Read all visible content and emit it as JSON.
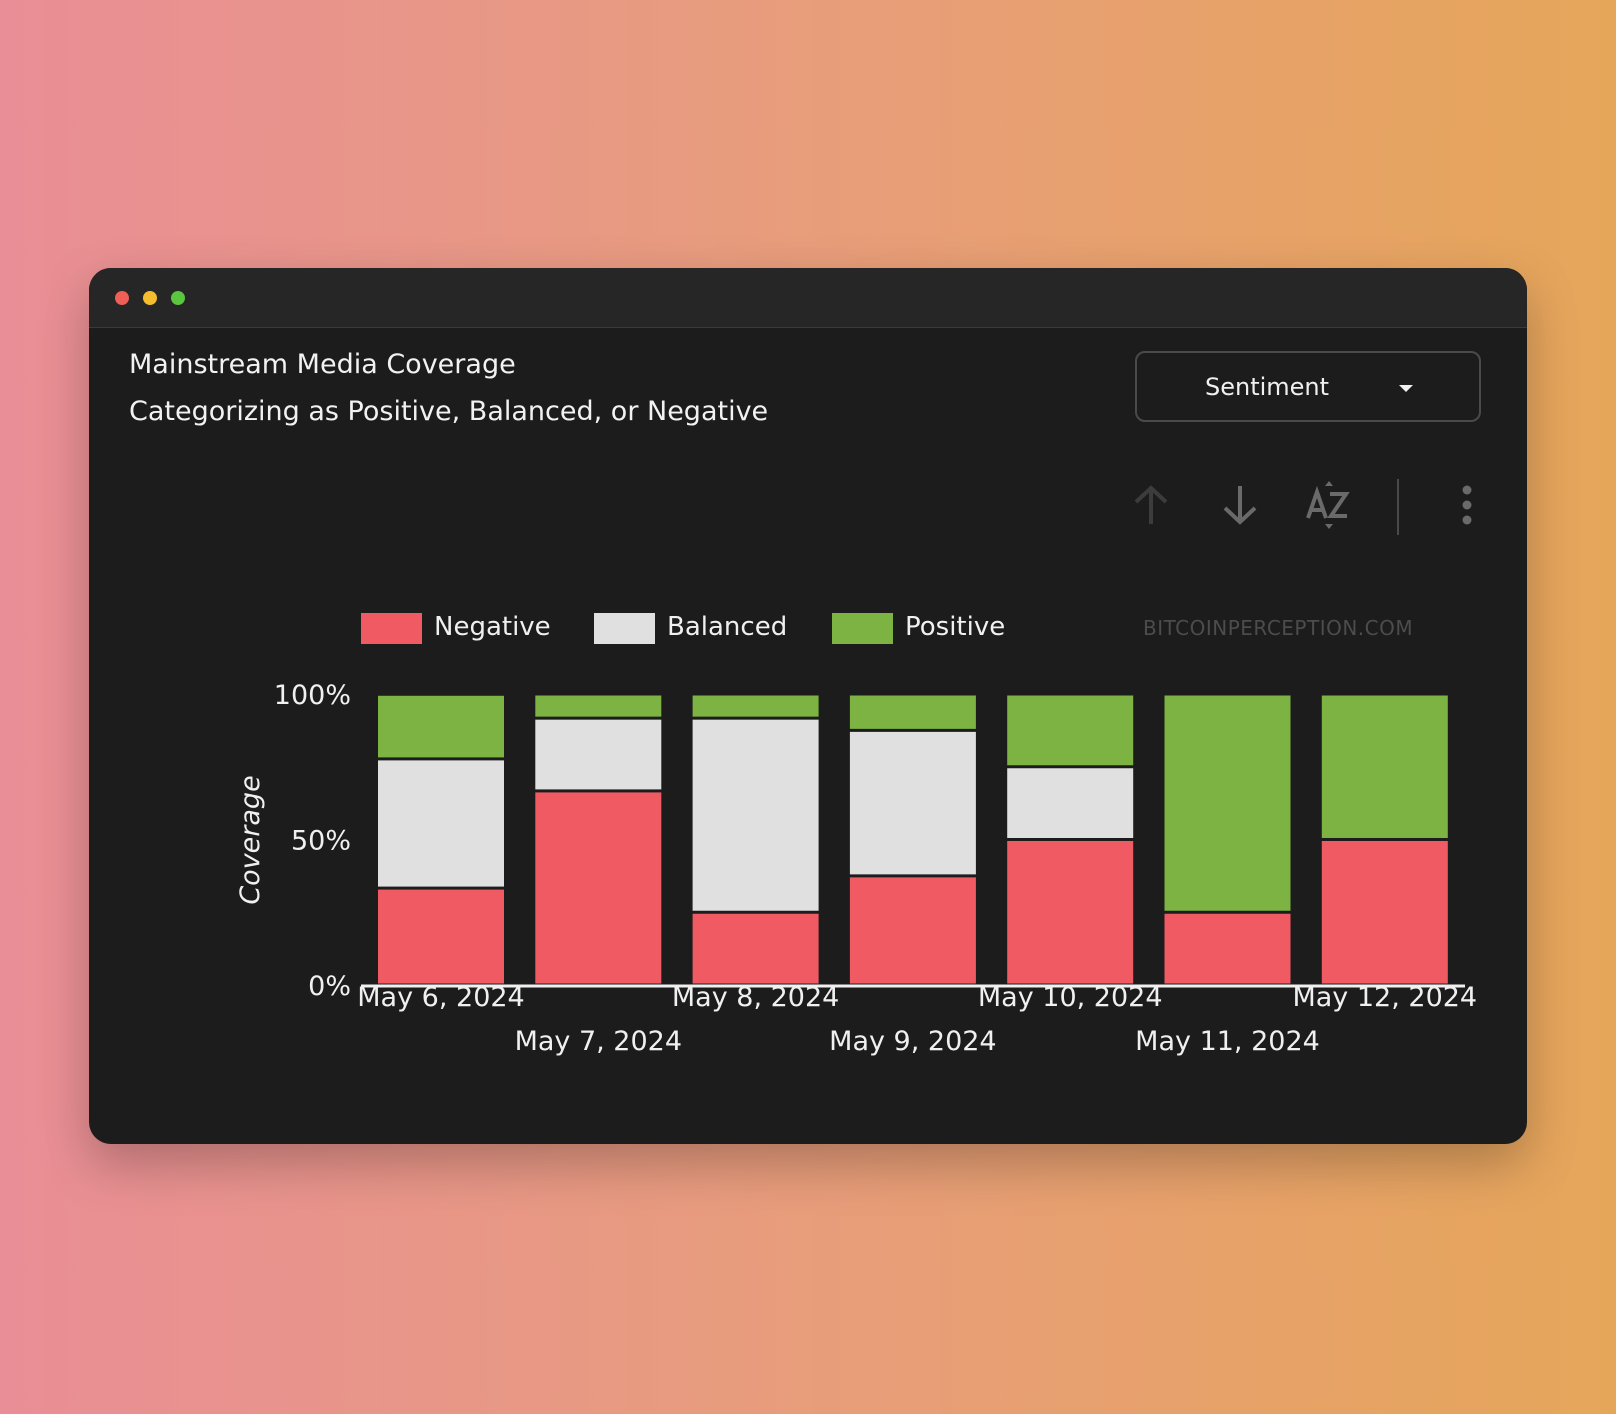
{
  "window": {
    "controls": [
      "close",
      "minimize",
      "maximize"
    ],
    "control_colors": [
      "#ee5f57",
      "#f5bd2e",
      "#5ac53f"
    ]
  },
  "header": {
    "title": "Mainstream Media Coverage",
    "subtitle": "Categorizing as Positive, Balanced, or Negative"
  },
  "dropdown": {
    "selected": "Sentiment",
    "icon": "caret-down-icon"
  },
  "toolbar": {
    "icons": [
      "arrow-up-icon",
      "arrow-down-icon",
      "sort-az-icon",
      "more-vertical-icon"
    ]
  },
  "watermark": "BITCOINPERCEPTION.COM",
  "chart_data": {
    "type": "bar",
    "stacked": true,
    "categories": [
      "May 6, 2024",
      "May 7, 2024",
      "May 8, 2024",
      "May 9, 2024",
      "May 10, 2024",
      "May 11, 2024",
      "May 12, 2024"
    ],
    "series": [
      {
        "name": "Negative",
        "color": "#f05b63",
        "values": [
          33.3,
          66.7,
          25,
          37.5,
          50,
          25,
          50
        ]
      },
      {
        "name": "Balanced",
        "color": "#e0e0e0",
        "values": [
          44.4,
          25,
          66.7,
          50,
          25,
          0,
          0
        ]
      },
      {
        "name": "Positive",
        "color": "#7cb342",
        "values": [
          22.2,
          8.3,
          8.3,
          12.5,
          25,
          75,
          50
        ]
      }
    ],
    "ylabel": "Coverage",
    "ylim": [
      0,
      100
    ],
    "yticks": [
      "0%",
      "50%",
      "100%"
    ],
    "grid": false,
    "legend": "top-left"
  }
}
